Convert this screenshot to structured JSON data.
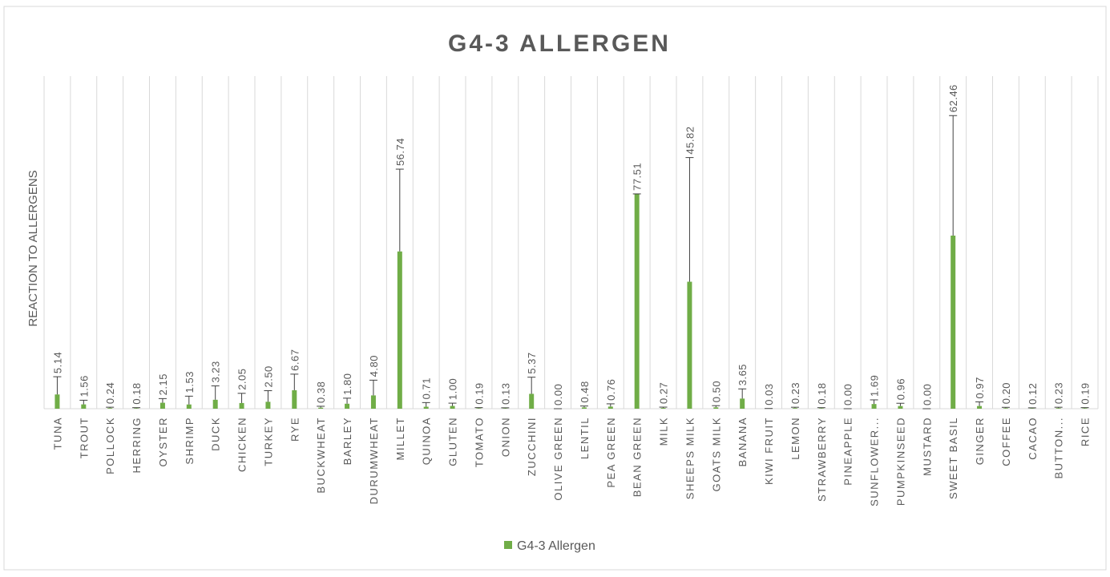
{
  "chart_data": {
    "type": "bar",
    "title": "G4-3 ALLERGEN",
    "y_label": "REACTION TO ALLERGENS",
    "categories": [
      "TUNA",
      "TROUT",
      "POLLOCK",
      "HERRING",
      "OYSTER",
      "SHRIMP",
      "DUCK",
      "CHICKEN",
      "TURKEY",
      "RYE",
      "BUCKWHEAT",
      "BARLEY",
      "DURUMWHEAT",
      "MILLET",
      "QUINOA",
      "GLUTEN",
      "TOMATO",
      "ONION",
      "ZUCCHINI",
      "OLIVE GREEN",
      "LENTIL",
      "PEA GREEN",
      "BEAN GREEN",
      "MILK",
      "SHEEPS MILK",
      "GOATS MILK",
      "BANANA",
      "KIWI FRUIT",
      "LEMON",
      "STRAWBERRY",
      "PINEAPPLE",
      "SUNFLOWER...",
      "PUMPKINSEED",
      "MUSTARD",
      "SWEET BASIL",
      "GINGER",
      "COFFEE",
      "CACAO",
      "BUTTON...",
      "RICE"
    ],
    "series": [
      {
        "name": "G4-3 Allergen",
        "color": "#70ad47",
        "values": [
          5.14,
          1.56,
          0.24,
          0.18,
          2.15,
          1.53,
          3.23,
          2.05,
          2.5,
          6.67,
          0.38,
          1.8,
          4.8,
          56.74,
          0.71,
          1,
          0.19,
          0.13,
          5.37,
          0,
          0.48,
          0.76,
          77.51,
          0.27,
          45.82,
          0.5,
          3.65,
          0.03,
          0.23,
          0.18,
          0,
          1.69,
          0.96,
          0,
          62.46,
          0.97,
          0.2,
          0.12,
          0.23,
          0.19
        ],
        "value_labels": [
          "5.14",
          "1.56",
          "0.24",
          "0.18",
          "2.15",
          "1.53",
          "3.23",
          "2.05",
          "2.50",
          "6.67",
          "0.38",
          "1.80",
          "4.80",
          "56.74",
          "0.71",
          "1.00",
          "0.19",
          "0.13",
          "5.37",
          "0.00",
          "0.48",
          "0.76",
          "77.51",
          "0.27",
          "45.82",
          "0.50",
          "3.65",
          "0.03",
          "0.23",
          "0.18",
          "0.00",
          "1.69",
          "0.96",
          "0.00",
          "62.46",
          "0.97",
          "0.20",
          "0.12",
          "0.23",
          "0.19"
        ],
        "errors": [
          6.4,
          1.5,
          0.3,
          0.2,
          1.5,
          3,
          5,
          3.5,
          4,
          5.8,
          0.5,
          2,
          5.5,
          29.7,
          1.5,
          1,
          0.2,
          0.2,
          6,
          0,
          0.5,
          1,
          0,
          0.3,
          44.8,
          0.6,
          3.5,
          0.05,
          0.3,
          0.2,
          0,
          1.5,
          1,
          0,
          43.3,
          1.5,
          0.3,
          0.2,
          0.3,
          0.2
        ]
      }
    ],
    "ylim": [
      0,
      120
    ],
    "grid": true,
    "legend": "bottom"
  }
}
